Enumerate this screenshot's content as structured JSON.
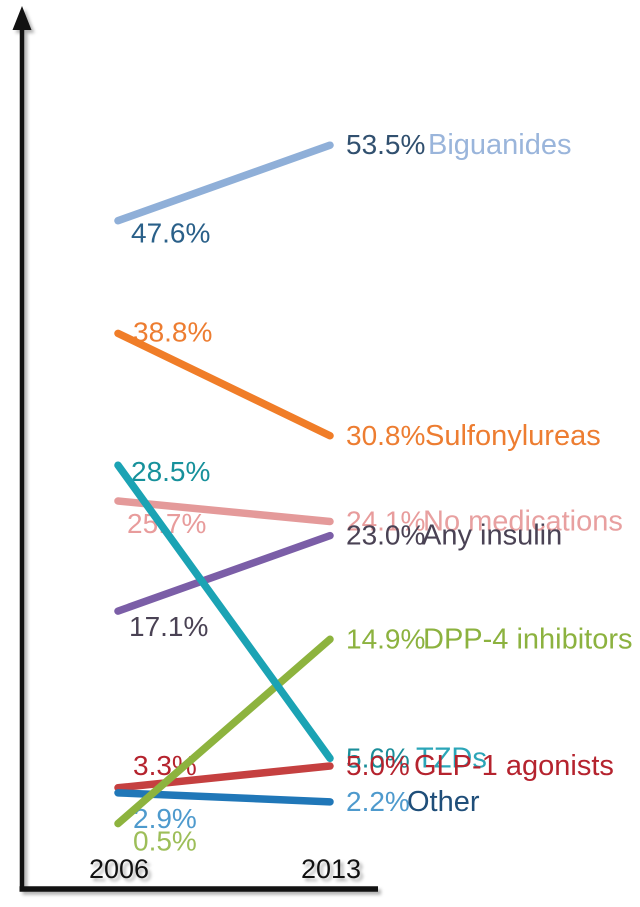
{
  "chart_data": {
    "type": "line",
    "subtype": "slopegraph",
    "title": "",
    "xlabel": "",
    "ylabel": "",
    "unit": "%",
    "x_categories": [
      "2006",
      "2013"
    ],
    "ylim": [
      0,
      60
    ],
    "grid": false,
    "legend_position": "right-inline",
    "axis_color": "#121212",
    "series": [
      {
        "name": "Biguanides",
        "values": [
          47.6,
          53.5
        ],
        "line_color": "#8FAFD8",
        "left_value_color": "#2A6089",
        "right_value_color": "#31506F",
        "name_color": "#9AB5DB",
        "z": 1,
        "left_dx": 13,
        "left_dy": 22,
        "name_x": 428
      },
      {
        "name": "Sulfonylureas",
        "values": [
          38.8,
          30.8
        ],
        "line_color": "#F07D28",
        "left_value_color": "#ED7D31",
        "right_value_color": "#ED7D31",
        "name_color": "#ED7D31",
        "z": 2,
        "left_dx": 15,
        "left_dy": 8,
        "name_x": 425
      },
      {
        "name": "No medications",
        "values": [
          25.7,
          24.1
        ],
        "line_color": "#E49A9A",
        "left_value_color": "#E89C9C",
        "right_value_color": "#E89C9C",
        "name_color": "#E8A0A0",
        "z": 3,
        "left_dx": 9,
        "left_dy": 32,
        "name_x": 423
      },
      {
        "name": "Any insulin",
        "values": [
          17.1,
          23.0
        ],
        "line_color": "#7B5EA7",
        "left_value_color": "#4A4254",
        "right_value_color": "#4A4254",
        "name_color": "#4A4254",
        "z": 4,
        "left_dx": 11,
        "left_dy": 25,
        "name_x": 422
      },
      {
        "name": "DPP-4 inhibitors",
        "values": [
          0.5,
          14.9
        ],
        "line_color": "#8DB33E",
        "left_value_color": "#9DBE59",
        "right_value_color": "#8CB23F",
        "name_color": "#8CB23F",
        "z": 7,
        "left_dx": 15,
        "left_dy": 27,
        "name_x": 423
      },
      {
        "name": "TZDs",
        "values": [
          28.5,
          5.6
        ],
        "line_color": "#1BA3B4",
        "left_value_color": "#17919B",
        "right_value_color": "#1B8E9A",
        "name_color": "#2BA6B8",
        "z": 8,
        "left_dx": 13,
        "left_dy": 16,
        "name_x": 416
      },
      {
        "name": "GLP-1 agonists",
        "values": [
          3.3,
          5.0
        ],
        "line_color": "#C54040",
        "left_value_color": "#B5232E",
        "right_value_color": "#B5232E",
        "name_color": "#B5232E",
        "z": 5,
        "left_dx": 15,
        "left_dy": -13,
        "name_x": 414
      },
      {
        "name": "Other",
        "values": [
          2.9,
          2.2
        ],
        "line_color": "#2077B8",
        "left_value_color": "#4E9ACD",
        "right_value_color": "#4E9ACD",
        "name_color": "#1F4E79",
        "z": 6,
        "left_dx": 15,
        "left_dy": 35,
        "name_x": 407
      }
    ]
  }
}
